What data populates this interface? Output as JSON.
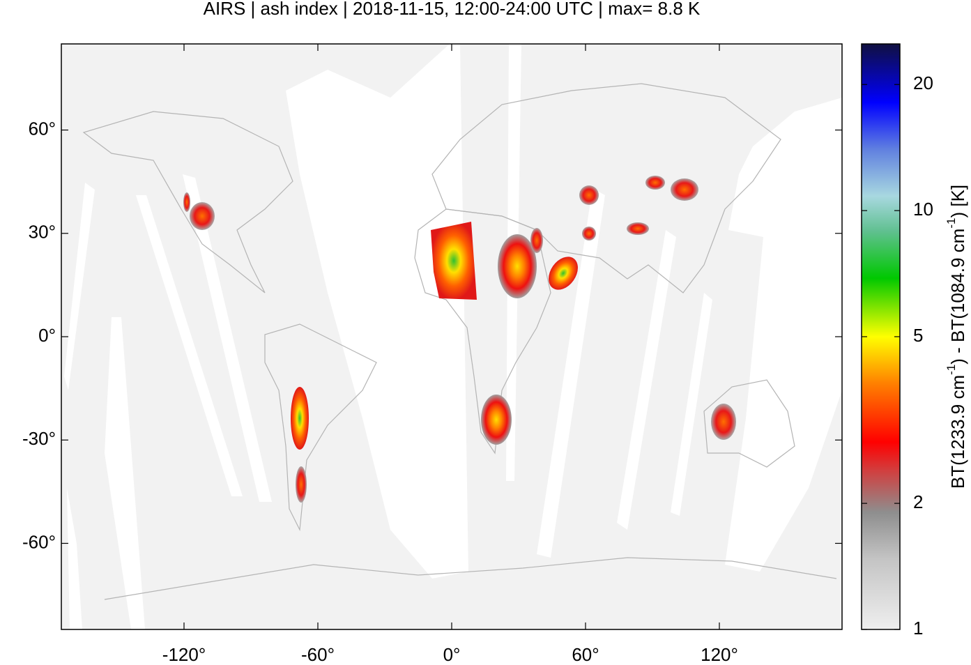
{
  "chart_data": {
    "type": "map",
    "title": "AIRS | ash index | 2018-11-15, 12:00-24:00 UTC | max= 8.8 K",
    "xlim": [
      -175,
      175
    ],
    "xticks": [
      {
        "value": -120,
        "label": "-120°"
      },
      {
        "value": -60,
        "label": "-60°"
      },
      {
        "value": 0,
        "label": "0°"
      },
      {
        "value": 60,
        "label": "60°"
      },
      {
        "value": 120,
        "label": "120°"
      }
    ],
    "ylim": [
      -85,
      85
    ],
    "yticks": [
      {
        "value": -60,
        "label": "-60°"
      },
      {
        "value": -30,
        "label": "-30°"
      },
      {
        "value": 0,
        "label": "0°"
      },
      {
        "value": 30,
        "label": "30°"
      },
      {
        "value": 60,
        "label": "60°"
      }
    ],
    "colorbar": {
      "scale": "log",
      "lim": [
        1,
        25
      ],
      "ticks": [
        1,
        2,
        5,
        10,
        20
      ],
      "label": [
        "BT(1233.9 cm",
        "-1",
        ") - BT(1084.9 cm",
        "-1",
        ") [K]"
      ]
    }
  }
}
